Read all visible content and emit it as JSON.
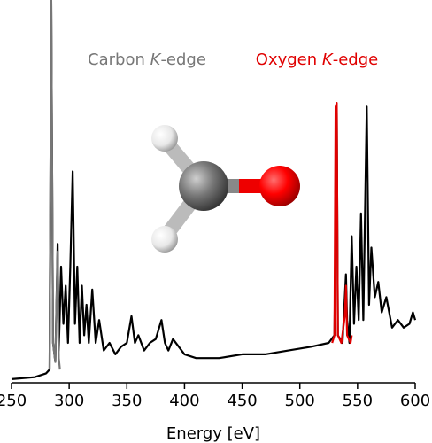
{
  "chart_data": {
    "type": "line",
    "xlabel": "Energy [eV]",
    "xlim": [
      250,
      600
    ],
    "xticks": [
      250,
      300,
      350,
      400,
      450,
      500,
      550,
      600
    ],
    "ylim": [
      0,
      100
    ],
    "annotations": [
      {
        "text": "Carbon K-edge",
        "italic": "K",
        "color": "#777777",
        "x": 317
      },
      {
        "text": "Oxygen K-edge",
        "italic": "K",
        "color": "#e00000",
        "x": 540
      }
    ],
    "series": [
      {
        "color": "#000000",
        "x": [
          250,
          270,
          280,
          283,
          284.5,
          286,
          288,
          290,
          291,
          293,
          295,
          297,
          299,
          301,
          303,
          305,
          307,
          309,
          311,
          313,
          315,
          317,
          320,
          323,
          326,
          330,
          335,
          340,
          345,
          350,
          354,
          357,
          360,
          365,
          370,
          375,
          380,
          383,
          386,
          390,
          395,
          400,
          410,
          420,
          430,
          450,
          470,
          490,
          510,
          525,
          530,
          532,
          533,
          537,
          540,
          541,
          543,
          545,
          547,
          549,
          551,
          553,
          555,
          558,
          560,
          562,
          565,
          568,
          571,
          575,
          580,
          585,
          590,
          595,
          598,
          600
        ],
        "values": [
          0.5,
          1,
          2,
          3,
          100,
          10,
          5,
          36,
          8,
          30,
          15,
          25,
          10,
          30,
          55,
          15,
          30,
          10,
          25,
          12,
          20,
          10,
          24,
          10,
          16,
          8,
          10,
          7,
          9,
          10,
          17,
          10,
          12,
          8,
          10,
          11,
          16,
          10,
          8,
          11,
          9,
          7,
          6,
          6,
          6,
          7,
          7,
          8,
          9,
          10,
          12,
          72,
          12,
          10,
          28,
          16,
          10,
          38,
          15,
          30,
          16,
          44,
          16,
          72,
          20,
          35,
          22,
          26,
          18,
          22,
          14,
          16,
          14,
          15,
          18,
          16
        ]
      },
      {
        "color": "#777777",
        "x": [
          283,
          284.5,
          286,
          288,
          290,
          291,
          292
        ],
        "values": [
          3,
          100,
          10,
          5,
          34,
          6,
          3
        ]
      },
      {
        "color": "#e00000",
        "x": [
          528,
          530,
          531,
          532,
          533,
          536,
          539,
          540,
          541,
          544,
          545
        ],
        "values": [
          10,
          12,
          72,
          73,
          12,
          10,
          17,
          25,
          12,
          10,
          12
        ]
      }
    ]
  }
}
